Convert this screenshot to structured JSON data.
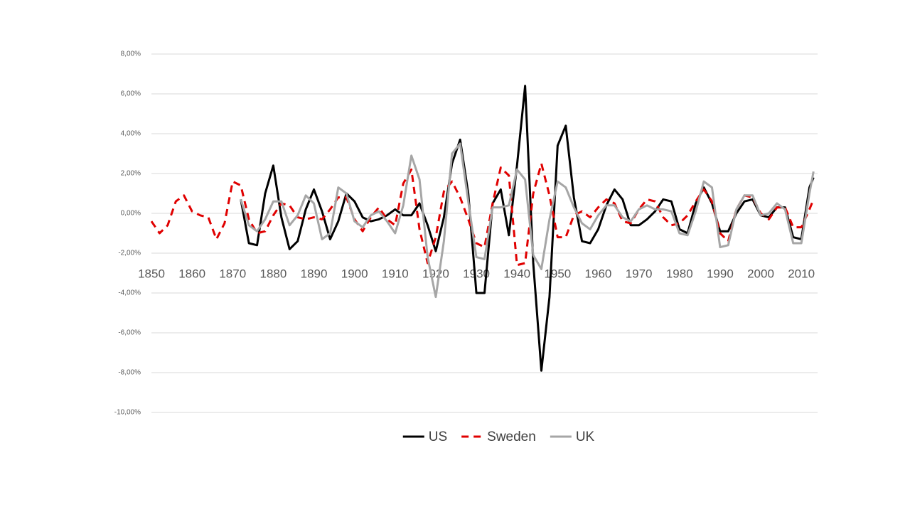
{
  "chart_data": {
    "type": "line",
    "x": [
      1850,
      1852,
      1854,
      1856,
      1858,
      1860,
      1862,
      1864,
      1866,
      1868,
      1870,
      1872,
      1874,
      1876,
      1878,
      1880,
      1882,
      1884,
      1886,
      1888,
      1890,
      1892,
      1894,
      1896,
      1898,
      1900,
      1902,
      1904,
      1906,
      1908,
      1910,
      1912,
      1914,
      1916,
      1918,
      1920,
      1922,
      1924,
      1926,
      1928,
      1930,
      1932,
      1934,
      1936,
      1938,
      1940,
      1942,
      1944,
      1946,
      1948,
      1950,
      1952,
      1954,
      1956,
      1958,
      1960,
      1962,
      1964,
      1966,
      1968,
      1970,
      1972,
      1974,
      1976,
      1978,
      1980,
      1982,
      1984,
      1986,
      1988,
      1990,
      1992,
      1994,
      1996,
      1998,
      2000,
      2002,
      2004,
      2006,
      2008,
      2010,
      2012,
      2013
    ],
    "xlim": [
      1850,
      2014
    ],
    "xticks": [
      1850,
      1860,
      1870,
      1880,
      1890,
      1900,
      1910,
      1920,
      1930,
      1940,
      1950,
      1960,
      1970,
      1980,
      1990,
      2000,
      2010
    ],
    "ylim": [
      -10,
      8
    ],
    "yticks": [
      {
        "value": -10,
        "label": "-10,00%"
      },
      {
        "value": -8,
        "label": "-8,00%"
      },
      {
        "value": -6,
        "label": "-6,00%"
      },
      {
        "value": -4,
        "label": "-4,00%"
      },
      {
        "value": -2,
        "label": "-2,00%"
      },
      {
        "value": 0,
        "label": "0,00%"
      },
      {
        "value": 2,
        "label": "2,00%"
      },
      {
        "value": 4,
        "label": "4,00%"
      },
      {
        "value": 6,
        "label": "6,00%"
      },
      {
        "value": 8,
        "label": "8,00%"
      }
    ],
    "grid": true,
    "legend": "bottom",
    "series": [
      {
        "name": "US",
        "color": "#000000",
        "style": "solid",
        "values": [
          null,
          null,
          null,
          null,
          null,
          null,
          null,
          null,
          null,
          null,
          null,
          0.7,
          -1.5,
          -1.6,
          1.0,
          2.4,
          -0.2,
          -1.8,
          -1.4,
          0.2,
          1.2,
          0.1,
          -1.3,
          -0.4,
          1.0,
          0.6,
          -0.2,
          -0.4,
          -0.3,
          -0.1,
          0.2,
          -0.1,
          -0.1,
          0.5,
          -0.6,
          -1.9,
          -0.2,
          2.5,
          3.7,
          1.0,
          -4.0,
          -4.0,
          0.5,
          1.2,
          -1.1,
          2.4,
          6.4,
          -2.5,
          -7.9,
          -4.2,
          3.4,
          4.4,
          0.8,
          -1.4,
          -1.5,
          -0.8,
          0.4,
          1.2,
          0.7,
          -0.6,
          -0.6,
          -0.3,
          0.1,
          0.7,
          0.6,
          -0.8,
          -1.0,
          0.5,
          1.3,
          0.5,
          -0.9,
          -0.9,
          0.0,
          0.6,
          0.7,
          -0.1,
          -0.2,
          0.3,
          0.3,
          -1.2,
          -1.3,
          1.3,
          1.8
        ]
      },
      {
        "name": "Sweden",
        "color": "#e00000",
        "style": "dashed",
        "values": [
          -0.4,
          -1.0,
          -0.6,
          0.6,
          0.9,
          0.1,
          -0.1,
          -0.2,
          -1.3,
          -0.5,
          1.6,
          1.4,
          -0.3,
          -1.0,
          -0.9,
          -0.1,
          0.5,
          0.4,
          -0.2,
          -0.3,
          -0.2,
          -0.3,
          0.2,
          0.8,
          0.8,
          -0.3,
          -0.9,
          -0.2,
          0.3,
          -0.3,
          -0.6,
          1.5,
          2.2,
          -0.8,
          -2.5,
          -1.2,
          1.1,
          1.6,
          0.8,
          -0.3,
          -1.5,
          -1.7,
          0.5,
          2.3,
          1.9,
          -2.6,
          -2.5,
          1.0,
          2.5,
          0.9,
          -1.2,
          -1.2,
          -0.1,
          0.1,
          -0.2,
          0.3,
          0.7,
          0.5,
          -0.4,
          -0.5,
          0.2,
          0.7,
          0.6,
          -0.2,
          -0.6,
          -0.5,
          -0.1,
          0.6,
          1.2,
          0.6,
          -1.0,
          -1.4,
          0.2,
          0.9,
          0.8,
          0.0,
          -0.3,
          0.3,
          0.3,
          -0.7,
          -0.7,
          0.2,
          0.7
        ]
      },
      {
        "name": "UK",
        "color": "#a6a6a6",
        "style": "solid",
        "values": [
          null,
          null,
          null,
          null,
          null,
          null,
          null,
          null,
          null,
          null,
          null,
          0.7,
          -0.6,
          -0.9,
          -0.3,
          0.6,
          0.6,
          -0.6,
          -0.1,
          0.9,
          0.5,
          -1.3,
          -1.0,
          1.3,
          1.0,
          -0.4,
          -0.7,
          -0.1,
          0.1,
          -0.4,
          -1.0,
          0.4,
          2.9,
          1.7,
          -2.2,
          -4.2,
          -1.4,
          3.0,
          3.5,
          0.6,
          -2.2,
          -2.3,
          0.3,
          0.3,
          0.4,
          2.2,
          1.7,
          -2.1,
          -2.8,
          -0.3,
          1.6,
          1.3,
          0.3,
          -0.5,
          -0.8,
          -0.1,
          0.4,
          0.4,
          -0.2,
          -0.4,
          0.2,
          0.4,
          0.2,
          0.2,
          0.1,
          -1.0,
          -1.1,
          0.1,
          1.6,
          1.3,
          -1.7,
          -1.6,
          0.2,
          0.9,
          0.9,
          -0.1,
          0.0,
          0.5,
          0.2,
          -1.5,
          -1.5,
          1.0,
          2.1
        ]
      }
    ]
  }
}
